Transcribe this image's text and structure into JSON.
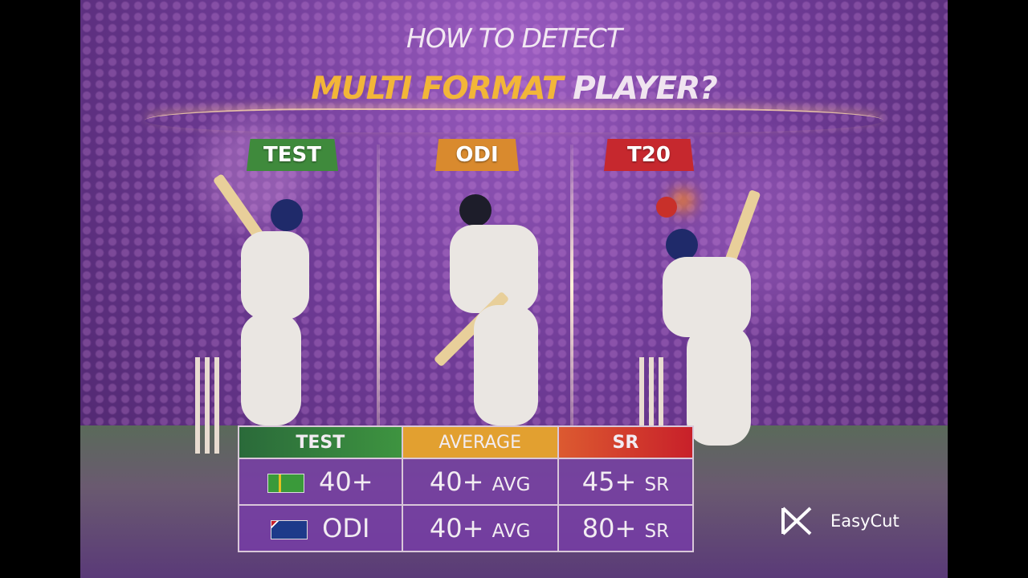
{
  "title": {
    "line1": "HOW TO DETECT",
    "highlight": "MULTI FORMAT",
    "rest": "PLAYER?"
  },
  "formats": [
    {
      "label": "TEST",
      "color": "#3f8a3c"
    },
    {
      "label": "ODI",
      "color": "#d98a2e"
    },
    {
      "label": "T20",
      "color": "#c6282e"
    }
  ],
  "table": {
    "headers": [
      {
        "label": "TEST",
        "color": "#2f7a3c"
      },
      {
        "label": "AVERAGE",
        "color": "#e2a030"
      },
      {
        "label": "SR",
        "color": "#d43a30"
      }
    ],
    "rows": [
      {
        "flag": "south-africa-flag-icon",
        "format": "40+",
        "avg": "40+",
        "avg_unit": "AVG",
        "sr": "45+",
        "sr_unit": "SR"
      },
      {
        "flag": "australia-flag-icon",
        "format": "ODI",
        "avg": "40+",
        "avg_unit": "AVG",
        "sr": "80+",
        "sr_unit": "SR"
      }
    ]
  },
  "watermark": {
    "label": "EasyCut"
  }
}
